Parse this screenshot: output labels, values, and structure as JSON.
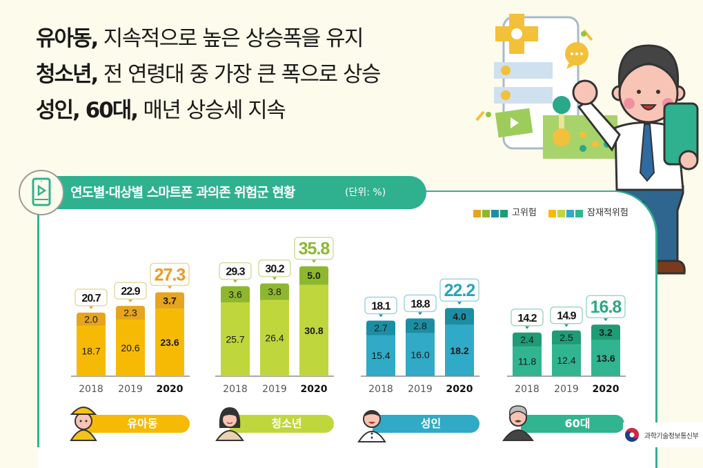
{
  "headline": [
    {
      "strong": "유아동,",
      "rest": " 지속적으로 높은 상승폭을 유지"
    },
    {
      "strong": "청소년,",
      "rest": " 전 연령대 중 가장 큰 폭으로 상승"
    },
    {
      "strong": "성인, 60대,",
      "rest": " 매년 상승세 지속"
    }
  ],
  "section": {
    "title": "연도별·대상별 스마트폰 과의존 위험군 현황",
    "unit": "(단위: %)",
    "icon": "smartphone-play-icon"
  },
  "legend": {
    "high_risk_label": "고위험",
    "potential_risk_label": "잠재적위험",
    "high_risk_colors": [
      "#e5a51c",
      "#8db72e",
      "#1b8ea3",
      "#1e9c75"
    ],
    "potential_risk_colors": [
      "#f6ba05",
      "#c0d63d",
      "#30aac6",
      "#30b590"
    ]
  },
  "chart_data": {
    "type": "bar",
    "stacked": true,
    "title": "연도별·대상별 스마트폰 과의존 위험군 현황",
    "unit": "%",
    "categories": [
      "2018",
      "2019",
      "2020"
    ],
    "groups": [
      {
        "name": "유아동",
        "total": [
          20.7,
          22.9,
          27.3
        ],
        "potential": [
          18.7,
          20.6,
          23.6
        ],
        "high": [
          2.0,
          2.3,
          3.7
        ],
        "color_potential": "#f6ba05",
        "color_high": "#e5a51c",
        "color_accent": "#f0981c",
        "color_border": "#e8d9a0"
      },
      {
        "name": "청소년",
        "total": [
          29.3,
          30.2,
          35.8
        ],
        "potential": [
          25.7,
          26.4,
          30.8
        ],
        "high": [
          3.6,
          3.8,
          5.0
        ],
        "color_potential": "#c0d63d",
        "color_high": "#8db72e",
        "color_accent": "#8ab830",
        "color_border": "#cfe09a"
      },
      {
        "name": "성인",
        "total": [
          18.1,
          18.8,
          22.2
        ],
        "potential": [
          15.4,
          16.0,
          18.2
        ],
        "high": [
          2.7,
          2.8,
          4.0
        ],
        "color_potential": "#30aac6",
        "color_high": "#1b8ea3",
        "color_accent": "#27a3bb",
        "color_border": "#9fd3df"
      },
      {
        "name": "60대",
        "total": [
          14.2,
          14.9,
          16.8
        ],
        "potential": [
          11.8,
          12.4,
          13.6
        ],
        "high": [
          2.4,
          2.5,
          3.2
        ],
        "color_potential": "#30b590",
        "color_high": "#1e9c75",
        "color_accent": "#28a982",
        "color_border": "#9fd8c4"
      }
    ],
    "series": [
      {
        "name": "잠재적위험",
        "segment": "bottom"
      },
      {
        "name": "고위험",
        "segment": "top"
      }
    ],
    "highlight_year": "2020",
    "ylim": [
      0,
      40
    ]
  },
  "footer": {
    "logo_text": "과학기술정보통신부"
  }
}
